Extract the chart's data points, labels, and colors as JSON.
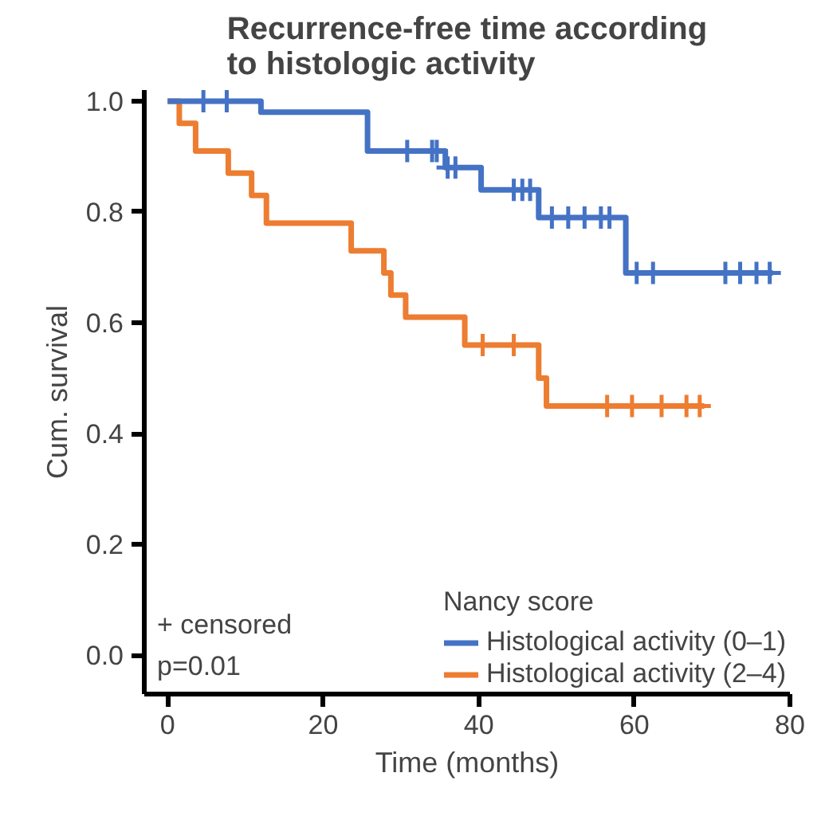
{
  "chart_data": {
    "type": "step",
    "title": "Recurrence-free time according to histologic activity",
    "xlabel": "Time (months)",
    "ylabel": "Cum. survival",
    "legend_title": "Nancy score",
    "legend": "bottom right",
    "grid": false,
    "line_style": "solid",
    "xlim": [
      -3,
      80
    ],
    "xticks": [
      0,
      20,
      40,
      60,
      80
    ],
    "ylim": [
      -0.07,
      1.02
    ],
    "yticks": [
      {
        "value": 0,
        "label": "0.0"
      },
      0.2,
      0.4,
      0.6,
      0.8,
      {
        "value": 1,
        "label": "1.0"
      }
    ],
    "annotations": [
      "+ censored",
      "p=0.01"
    ],
    "series": [
      {
        "name": "Histological activity (0–1)",
        "color": "#4472c4",
        "x": [
          0,
          12,
          25.7,
          35.7,
          40.3,
          47.7,
          58.9,
          77.8
        ],
        "values": [
          1,
          0.98,
          0.91,
          0.88,
          0.84,
          0.79,
          0.69,
          0.69
        ]
      },
      {
        "name": "Histological activity (2–4)",
        "color": "#ed7d31",
        "x": [
          0,
          1.5,
          3.6,
          7.8,
          10.8,
          12.7,
          23.6,
          27.8,
          28.7,
          30.6,
          38.2,
          47.7,
          48.7,
          69
        ],
        "values": [
          1,
          0.96,
          0.91,
          0.87,
          0.83,
          0.78,
          0.73,
          0.69,
          0.65,
          0.61,
          0.56,
          0.5,
          0.45,
          0.45
        ]
      },
      {
        "type": "scatter",
        "marker": "cross",
        "color": "#4472c4",
        "x": [
          4.6,
          7.6,
          30.8,
          34,
          34.6,
          36,
          37,
          44.5,
          45.6,
          46.6,
          49.4,
          51.5,
          53.6,
          55.7,
          56.8,
          60.3,
          62.4,
          71.7,
          73.6,
          75.7,
          77.4
        ],
        "values": [
          1,
          1,
          0.91,
          0.91,
          0.91,
          0.88,
          0.88,
          0.84,
          0.84,
          0.84,
          0.79,
          0.79,
          0.79,
          0.79,
          0.79,
          0.69,
          0.69,
          0.69,
          0.69,
          0.69,
          0.69
        ]
      },
      {
        "type": "scatter",
        "marker": "cross",
        "color": "#ed7d31",
        "x": [
          40.5,
          44.5,
          56.5,
          59.7,
          63.5,
          66.7,
          68.4
        ],
        "values": [
          0.56,
          0.56,
          0.45,
          0.45,
          0.45,
          0.45,
          0.45
        ]
      }
    ]
  }
}
